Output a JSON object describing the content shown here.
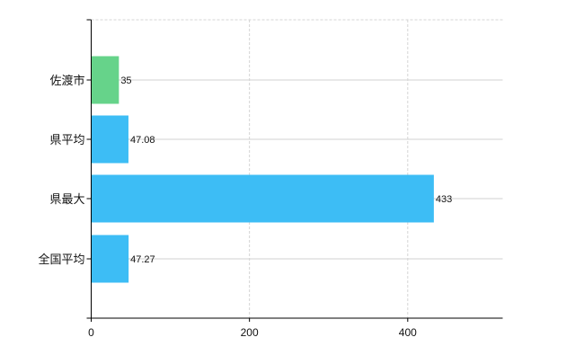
{
  "chart_data": {
    "type": "bar",
    "orientation": "horizontal",
    "categories": [
      "佐渡市",
      "県平均",
      "県最大",
      "全国平均"
    ],
    "values": [
      35,
      47.08,
      433,
      47.27
    ],
    "data_labels": [
      "35",
      "47.08",
      "433",
      "47.27"
    ],
    "colors": [
      "#66d38a",
      "#3dbdf5",
      "#3dbdf5",
      "#3dbdf5"
    ],
    "xlim": [
      0,
      520
    ],
    "x_ticks": [
      0,
      200,
      400
    ],
    "x_tick_labels": [
      "0",
      "200",
      "400"
    ],
    "grid": true,
    "title": "",
    "xlabel": "",
    "ylabel": ""
  }
}
